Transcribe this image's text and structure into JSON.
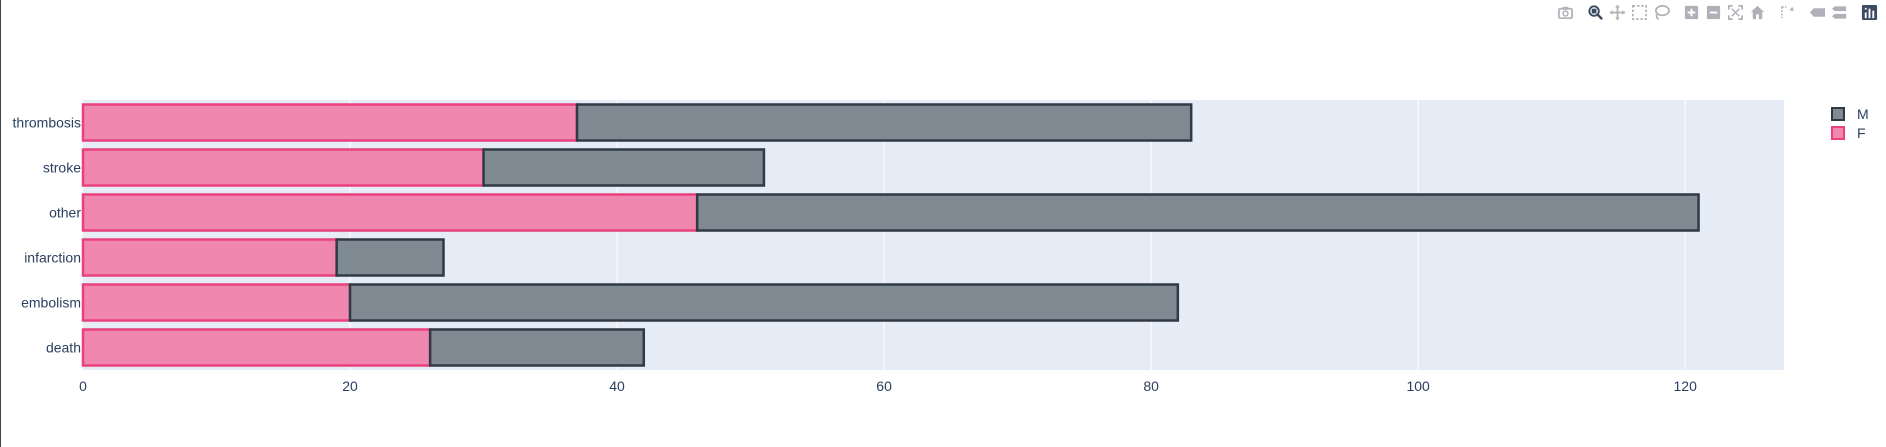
{
  "modebar": {
    "buttons": [
      {
        "name": "camera-icon",
        "title": "Download plot as a png"
      },
      {
        "name": "zoom-icon",
        "title": "Zoom",
        "active": true
      },
      {
        "name": "pan-icon",
        "title": "Pan"
      },
      {
        "name": "box-select-icon",
        "title": "Box Select"
      },
      {
        "name": "lasso-select-icon",
        "title": "Lasso Select"
      },
      {
        "name": "zoom-in-icon",
        "title": "Zoom in"
      },
      {
        "name": "zoom-out-icon",
        "title": "Zoom out"
      },
      {
        "name": "autoscale-icon",
        "title": "Autoscale"
      },
      {
        "name": "reset-axes-icon",
        "title": "Reset axes"
      },
      {
        "name": "spike-lines-icon",
        "title": "Toggle Spike Lines"
      },
      {
        "name": "hover-closest-icon",
        "title": "Show closest data on hover"
      },
      {
        "name": "hover-compare-icon",
        "title": "Compare data on hover"
      },
      {
        "name": "plotly-logo-icon",
        "title": "Produced with Plotly"
      }
    ]
  },
  "chart_data": {
    "type": "bar",
    "orientation": "horizontal",
    "barmode": "stack",
    "categories": [
      "death",
      "embolism",
      "infarction",
      "other",
      "stroke",
      "thrombosis"
    ],
    "series": [
      {
        "name": "F",
        "values": [
          26,
          20,
          19,
          46,
          30,
          37
        ],
        "fill": "#ef87ae",
        "stroke": "#e8417d"
      },
      {
        "name": "M",
        "values": [
          16,
          62,
          8,
          75,
          21,
          46
        ],
        "fill": "#808a92",
        "stroke": "#2f3a45"
      }
    ],
    "xlim": [
      0,
      127.4
    ],
    "xticks": [
      0,
      20,
      40,
      60,
      80,
      100,
      120
    ],
    "grid": true,
    "legend_position": "top-right",
    "legend_order": [
      "M",
      "F"
    ],
    "colors": {
      "plot_bg": "#e5ecf6",
      "grid": "#ffffff",
      "tick_text": "#2a3f5f"
    },
    "title": "",
    "xlabel": "",
    "ylabel": ""
  }
}
